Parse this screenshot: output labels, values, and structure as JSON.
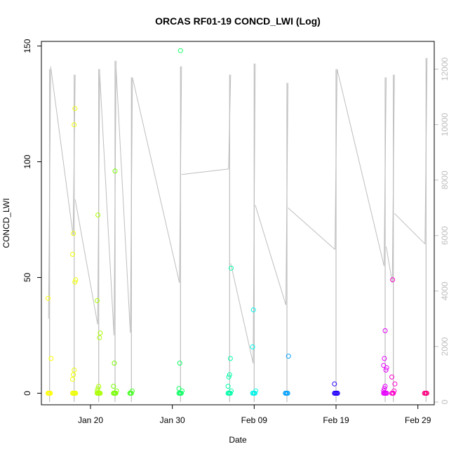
{
  "chart_data": {
    "type": "scatter",
    "title": "ORCAS RF01-19 CONCD_LWI (Log)",
    "xlabel": "Date",
    "ylabel": "CONCD_LWI",
    "x_domain": [
      "2016-01-14",
      "2016-03-02"
    ],
    "ylim": [
      -5,
      152
    ],
    "y_ticks": [
      0,
      50,
      100,
      150
    ],
    "y2lim": [
      -100,
      13000
    ],
    "y2_ticks": [
      0,
      2000,
      4000,
      6000,
      8000,
      10000,
      12000
    ],
    "x_ticks": [
      {
        "date": "2016-01-20",
        "label": "Jan 20"
      },
      {
        "date": "2016-01-30",
        "label": "Jan 30"
      },
      {
        "date": "2016-02-09",
        "label": "Feb 09"
      },
      {
        "date": "2016-02-19",
        "label": "Feb 19"
      },
      {
        "date": "2016-02-29",
        "label": "Feb 29"
      }
    ],
    "grid": false,
    "legend": "none",
    "secondary_series_color": "#bebebe",
    "flights": [
      {
        "date": "2016-01-15",
        "color": "#ffff00",
        "y2_start": 3000,
        "y2_end": 12100,
        "y2_spike_max": 12000,
        "points": [
          0,
          0,
          0,
          0,
          15,
          41
        ]
      },
      {
        "date": "2016-01-18",
        "color": "#eeff00",
        "y2_start": 6000,
        "y2_end": 7300,
        "y2_spike_max": 11800,
        "points": [
          0,
          0,
          0,
          0,
          0,
          6,
          8,
          10,
          48,
          49,
          60,
          69,
          116,
          123
        ]
      },
      {
        "date": "2016-01-21",
        "color": "#aaff00",
        "y2_start": 2800,
        "y2_end": 11800,
        "y2_spike_max": 12000,
        "points": [
          0,
          0,
          0,
          0,
          0,
          1,
          2,
          3,
          24,
          26,
          40,
          77
        ]
      },
      {
        "date": "2016-01-23",
        "color": "#77ff00",
        "y2_start": 2400,
        "y2_end": 12000,
        "y2_spike_max": 12300,
        "points": [
          0,
          0,
          0,
          0,
          1,
          3,
          13,
          96
        ]
      },
      {
        "date": "2016-01-25",
        "color": "#44ff22",
        "y2_start": 2500,
        "y2_end": 11700,
        "y2_spike_max": 11700,
        "points": [
          0,
          0,
          0,
          1
        ]
      },
      {
        "date": "2016-01-31",
        "color": "#11ff66",
        "y2_start": 4300,
        "y2_end": 8200,
        "y2_spike_max": 12100,
        "points": [
          0,
          0,
          0,
          0,
          1,
          2,
          13,
          148
        ]
      },
      {
        "date": "2016-02-06",
        "color": "#00ffaa",
        "y2_start": 8400,
        "y2_end": 5000,
        "y2_spike_max": 11800,
        "points": [
          0,
          0,
          0,
          0,
          1,
          3,
          7,
          8,
          15,
          54
        ]
      },
      {
        "date": "2016-02-09",
        "color": "#00f5e8",
        "y2_start": 1400,
        "y2_end": 7100,
        "y2_spike_max": 12200,
        "points": [
          0,
          0,
          0,
          0,
          1,
          20,
          36
        ]
      },
      {
        "date": "2016-02-13",
        "color": "#00a0ff",
        "y2_start": 3500,
        "y2_end": 7000,
        "y2_spike_max": 11500,
        "points": [
          0,
          0,
          0,
          0,
          16
        ]
      },
      {
        "date": "2016-02-19",
        "color": "#2200ff",
        "y2_start": 5500,
        "y2_end": 12000,
        "y2_spike_max": 12000,
        "points": [
          0,
          0,
          0,
          0,
          0,
          4
        ]
      },
      {
        "date": "2016-02-25",
        "color": "#e600ff",
        "y2_start": 4900,
        "y2_end": 5600,
        "y2_spike_max": 11700,
        "points": [
          0,
          0,
          0,
          0,
          0,
          1,
          2,
          3,
          10,
          11,
          12,
          15,
          27
        ]
      },
      {
        "date": "2016-02-26",
        "color": "#ff00cc",
        "y2_start": 4300,
        "y2_end": 6800,
        "y2_spike_max": 11800,
        "points": [
          0,
          0,
          0,
          1,
          4,
          7,
          49
        ]
      },
      {
        "date": "2016-03-01",
        "color": "#ff0080",
        "y2_start": 5700,
        "y2_end": 12400,
        "y2_spike_max": 12400,
        "points": [
          0,
          0,
          0,
          0
        ]
      }
    ]
  }
}
